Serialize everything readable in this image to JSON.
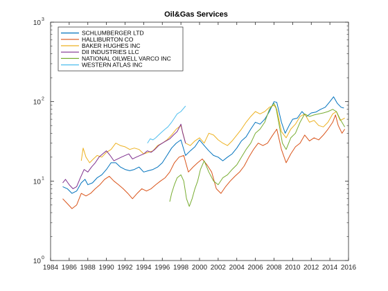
{
  "chart_data": {
    "type": "line",
    "title": "Oil&Gas Services",
    "xlabel": "",
    "ylabel": "",
    "xlim": [
      1984,
      2016
    ],
    "ylim": [
      1,
      1000
    ],
    "yscale": "log",
    "grid": false,
    "legend_position": "top-left",
    "x_ticks": [
      "1984",
      "1986",
      "1988",
      "1990",
      "1992",
      "1994",
      "1996",
      "1998",
      "2000",
      "2002",
      "2004",
      "2006",
      "2008",
      "2010",
      "2012",
      "2014",
      "2016"
    ],
    "y_ticks": [
      {
        "base": "10",
        "exp": "0",
        "value": 1
      },
      {
        "base": "10",
        "exp": "1",
        "value": 10
      },
      {
        "base": "10",
        "exp": "2",
        "value": 100
      },
      {
        "base": "10",
        "exp": "3",
        "value": 1000
      }
    ],
    "series": [
      {
        "name": "SCHLUMBERGER LTD",
        "color": "#0072BD",
        "x": [
          1985.3,
          1985.8,
          1986.3,
          1986.8,
          1987.3,
          1987.7,
          1988.0,
          1988.5,
          1989,
          1989.5,
          1990,
          1990.5,
          1991,
          1991.5,
          1992,
          1992.5,
          1993,
          1993.5,
          1994,
          1994.5,
          1995,
          1995.5,
          1996,
          1996.5,
          1997,
          1997.5,
          1998,
          1998.5,
          1999,
          1999.5,
          2000,
          2000.5,
          2001,
          2001.5,
          2002,
          2002.5,
          2003,
          2003.5,
          2004,
          2004.5,
          2005,
          2005.5,
          2006,
          2006.5,
          2007,
          2007.5,
          2008,
          2008.3,
          2008.8,
          2009.2,
          2009.7,
          2010,
          2010.5,
          2011,
          2011.5,
          2012,
          2012.5,
          2013,
          2013.5,
          2014,
          2014.4,
          2014.8,
          2015.2,
          2015.5
        ],
        "y": [
          8.5,
          8.0,
          7.0,
          7.5,
          9.5,
          10.5,
          9.0,
          9.5,
          11,
          12,
          14,
          17,
          17,
          15,
          14,
          13.5,
          14,
          15,
          13,
          13.5,
          14,
          15,
          17,
          21,
          26,
          30,
          33,
          21,
          24,
          27,
          33,
          28,
          24,
          21,
          20,
          18,
          20,
          22,
          26,
          32,
          36,
          45,
          55,
          52,
          60,
          75,
          100,
          98,
          55,
          40,
          52,
          60,
          62,
          75,
          65,
          72,
          74,
          80,
          85,
          100,
          115,
          95,
          85,
          83
        ]
      },
      {
        "name": "HALLIBURTON CO",
        "color": "#D95319",
        "x": [
          1985.3,
          1985.8,
          1986.3,
          1986.8,
          1987.3,
          1987.8,
          1988.3,
          1988.8,
          1989.3,
          1989.8,
          1990.3,
          1990.8,
          1991.3,
          1991.8,
          1992.3,
          1992.8,
          1993.3,
          1993.8,
          1994.3,
          1994.8,
          1995.3,
          1995.8,
          1996.3,
          1996.8,
          1997.3,
          1997.8,
          1998.3,
          1998.8,
          1999.3,
          1999.8,
          2000.3,
          2000.8,
          2001.3,
          2001.8,
          2002.3,
          2002.8,
          2003.3,
          2003.8,
          2004.3,
          2004.8,
          2005.3,
          2005.8,
          2006.3,
          2006.8,
          2007.3,
          2007.8,
          2008.3,
          2008.8,
          2009.3,
          2009.8,
          2010.3,
          2010.8,
          2011.3,
          2011.8,
          2012.3,
          2012.8,
          2013.3,
          2013.8,
          2014.3,
          2014.6,
          2014.9,
          2015.3,
          2015.6
        ],
        "y": [
          6.0,
          5.2,
          4.5,
          5.0,
          7.0,
          6.5,
          7.0,
          8.0,
          9.0,
          10.5,
          11.5,
          10,
          9,
          8,
          7,
          6,
          7,
          8,
          7.5,
          8,
          9,
          10,
          11,
          13,
          17,
          20,
          21,
          13,
          15,
          17,
          19,
          16,
          13,
          8,
          7,
          8.5,
          10,
          11.5,
          13,
          15.5,
          20,
          25,
          30,
          28,
          30,
          37,
          45,
          25,
          17,
          22,
          27,
          30,
          38,
          32,
          35,
          33,
          38,
          45,
          55,
          68,
          50,
          40,
          45
        ]
      },
      {
        "name": "BAKER HUGHES INC",
        "color": "#EDB120",
        "x": [
          1987.3,
          1987.5,
          1987.8,
          1988.2,
          1988.6,
          1989,
          1989.5,
          1990,
          1990.5,
          1991,
          1991.5,
          1992,
          1992.5,
          1993,
          1993.5,
          1994,
          1994.5,
          1995,
          1995.5,
          1996,
          1996.5,
          1997,
          1997.5,
          1998,
          1998.5,
          1999,
          1999.5,
          2000,
          2000.5,
          2001,
          2001.5,
          2002,
          2002.5,
          2003,
          2003.5,
          2004,
          2004.5,
          2005,
          2005.5,
          2006,
          2006.5,
          2007,
          2007.5,
          2008,
          2008.3,
          2008.8,
          2009.3,
          2009.8,
          2010.3,
          2010.8,
          2011.3,
          2011.8,
          2012.3,
          2012.8,
          2013.3,
          2013.8,
          2014.3,
          2014.7,
          2015.1,
          2015.6
        ],
        "y": [
          18,
          26,
          20,
          17,
          19,
          21,
          20,
          23,
          25,
          30,
          28,
          27,
          25,
          26,
          25,
          22,
          23,
          24,
          28,
          30,
          33,
          38,
          45,
          50,
          30,
          28,
          32,
          35,
          30,
          40,
          38,
          33,
          30,
          28,
          32,
          38,
          45,
          55,
          65,
          75,
          70,
          75,
          85,
          90,
          80,
          42,
          35,
          45,
          52,
          65,
          70,
          55,
          58,
          50,
          48,
          55,
          70,
          75,
          58,
          62
        ]
      },
      {
        "name": "DII INDUSTRIES LLC",
        "color": "#7E2F8E",
        "x": [
          1985.3,
          1985.6,
          1986,
          1986.4,
          1986.8,
          1987.2,
          1987.6,
          1988,
          1988.4,
          1988.8,
          1989.2,
          1989.6,
          1990,
          1990.4,
          1990.8,
          1991.2,
          1991.6,
          1992,
          1992.4,
          1992.8,
          1993.2,
          1993.6,
          1994,
          1994.4,
          1994.8,
          1995.2,
          1995.6,
          1996,
          1996.4,
          1996.8,
          1997.2,
          1997.6,
          1998,
          1998.2,
          1998.5
        ],
        "y": [
          9.5,
          10.5,
          9.0,
          8.0,
          8.5,
          11,
          14,
          13,
          15,
          17,
          20,
          22,
          24,
          21,
          18,
          19,
          20,
          21,
          22,
          19,
          20,
          21,
          22,
          24,
          23,
          25,
          28,
          30,
          32,
          34,
          38,
          42,
          52,
          40,
          30
        ]
      },
      {
        "name": "NATIONAL OILWELL VARCO INC",
        "color": "#77AC30",
        "x": [
          1996.8,
          1997,
          1997.3,
          1997.6,
          1998,
          1998.3,
          1998.6,
          1998.9,
          1999.2,
          1999.5,
          1999.8,
          2000.1,
          2000.5,
          2001,
          2001.5,
          2002,
          2002.5,
          2003,
          2003.5,
          2004,
          2004.5,
          2005,
          2005.5,
          2006,
          2006.5,
          2007,
          2007.5,
          2008,
          2008.2,
          2008.5,
          2008.9,
          2009.3,
          2009.8,
          2010.3,
          2010.8,
          2011.3,
          2011.8,
          2012.3,
          2012.8,
          2013.3,
          2013.8,
          2014.3,
          2014.7,
          2015.1,
          2015.6
        ],
        "y": [
          5.5,
          7,
          9,
          11,
          12,
          10,
          6,
          4.8,
          6,
          8,
          10,
          14,
          18,
          13,
          10,
          9,
          11,
          12,
          14,
          16,
          20,
          25,
          30,
          40,
          45,
          55,
          80,
          95,
          85,
          55,
          30,
          25,
          35,
          40,
          55,
          70,
          65,
          68,
          70,
          72,
          75,
          80,
          75,
          60,
          48
        ]
      },
      {
        "name": "WESTERN ATLAS INC",
        "color": "#4DBEEE",
        "x": [
          1994.4,
          1994.7,
          1995,
          1995.3,
          1995.6,
          1996,
          1996.3,
          1996.6,
          1997,
          1997.3,
          1997.6,
          1998,
          1998.2,
          1998.5
        ],
        "y": [
          30,
          34,
          33,
          35,
          38,
          42,
          45,
          48,
          55,
          62,
          70,
          75,
          80,
          88
        ]
      }
    ]
  }
}
